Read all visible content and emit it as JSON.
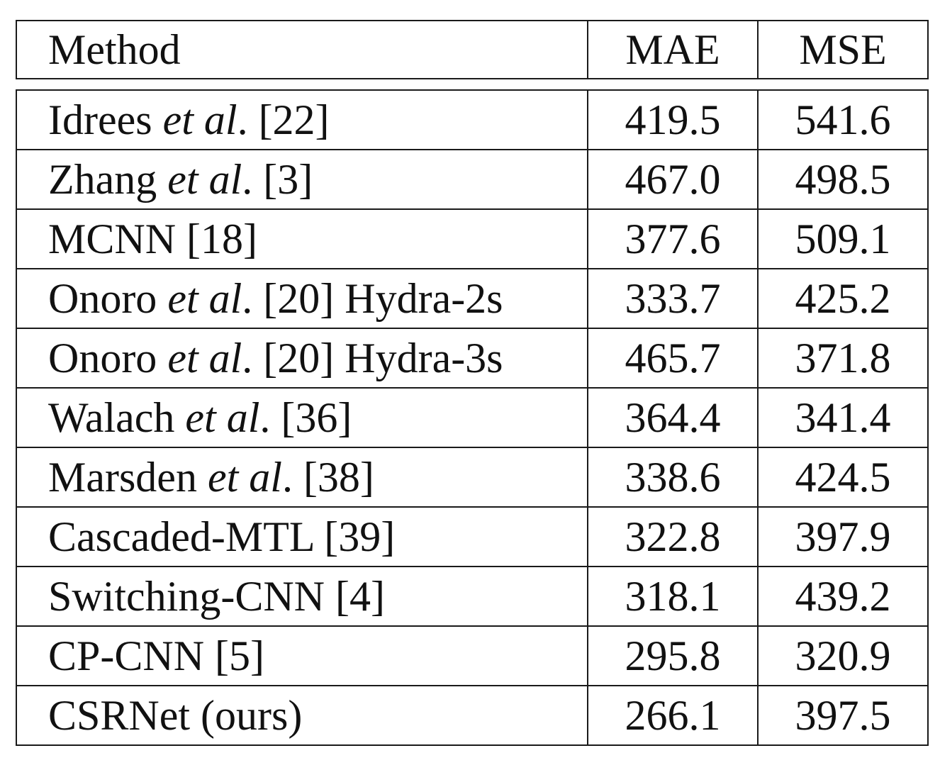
{
  "header": {
    "method": "Method",
    "mae": "MAE",
    "mse": "MSE"
  },
  "rows": [
    {
      "name": "Idrees",
      "etal": "et al",
      "suffix": ". [22]",
      "mae": "419.5",
      "mse": "541.6",
      "bold_mae": false,
      "bold_mse": false
    },
    {
      "name": "Zhang",
      "etal": "et al",
      "suffix": ". [3]",
      "mae": "467.0",
      "mse": "498.5",
      "bold_mae": false,
      "bold_mse": false
    },
    {
      "name": "MCNN [18]",
      "etal": "",
      "suffix": "",
      "mae": "377.6",
      "mse": "509.1",
      "bold_mae": false,
      "bold_mse": false
    },
    {
      "name": "Onoro",
      "etal": "et al",
      "suffix": ". [20] Hydra-2s",
      "mae": "333.7",
      "mse": "425.2",
      "bold_mae": false,
      "bold_mse": false
    },
    {
      "name": "Onoro",
      "etal": "et al",
      "suffix": ". [20] Hydra-3s",
      "mae": "465.7",
      "mse": "371.8",
      "bold_mae": false,
      "bold_mse": false
    },
    {
      "name": "Walach",
      "etal": "et al",
      "suffix": ". [36]",
      "mae": "364.4",
      "mse": "341.4",
      "bold_mae": false,
      "bold_mse": false
    },
    {
      "name": "Marsden",
      "etal": "et al",
      "suffix": ". [38]",
      "mae": "338.6",
      "mse": "424.5",
      "bold_mae": false,
      "bold_mse": false
    },
    {
      "name": "Cascaded-MTL [39]",
      "etal": "",
      "suffix": "",
      "mae": "322.8",
      "mse": "397.9",
      "bold_mae": false,
      "bold_mse": false
    },
    {
      "name": "Switching-CNN [4]",
      "etal": "",
      "suffix": "",
      "mae": "318.1",
      "mse": "439.2",
      "bold_mae": false,
      "bold_mse": false
    },
    {
      "name": "CP-CNN [5]",
      "etal": "",
      "suffix": "",
      "mae": "295.8",
      "mse": "320.9",
      "bold_mae": false,
      "bold_mse": true
    },
    {
      "name": "CSRNet (ours)",
      "etal": "",
      "suffix": "",
      "mae": "266.1",
      "mse": "397.5",
      "bold_mae": true,
      "bold_mse": false
    }
  ]
}
